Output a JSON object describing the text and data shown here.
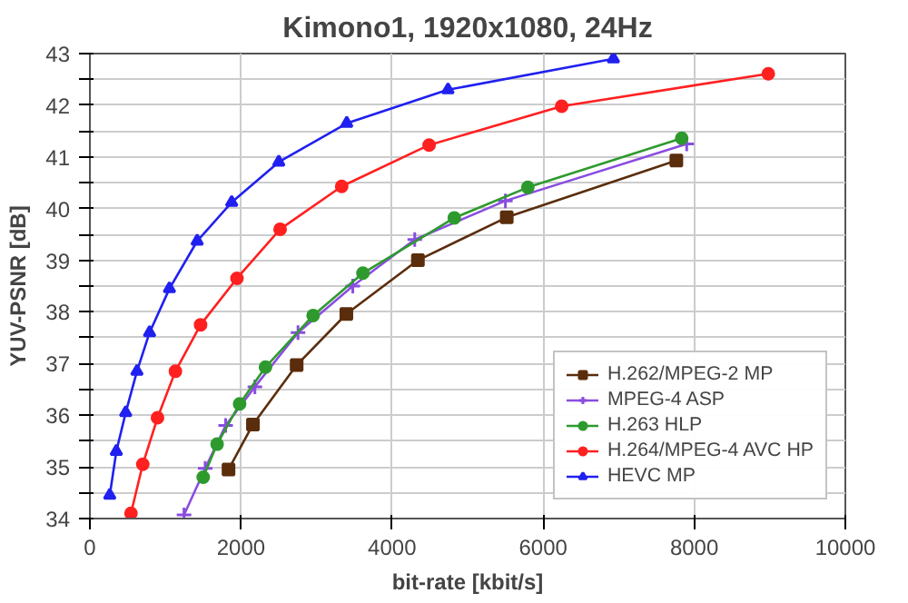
{
  "chart_data": {
    "type": "line",
    "title": "Kimono1, 1920x1080, 24Hz",
    "xlabel": "bit-rate [kbit/s]",
    "ylabel": "YUV-PSNR [dB]",
    "xlim": [
      0,
      10000
    ],
    "xticks": [
      0,
      2000,
      4000,
      6000,
      8000,
      10000
    ],
    "ylim": [
      34,
      43
    ],
    "yticks": [
      34,
      {
        "value": 34.5,
        "label": null
      },
      35,
      {
        "value": 35.5,
        "label": null
      },
      36,
      {
        "value": 36.5,
        "label": null
      },
      37,
      {
        "value": 37.5,
        "label": null
      },
      38,
      {
        "value": 38.5,
        "label": null
      },
      39,
      {
        "value": 39.5,
        "label": null
      },
      40,
      {
        "value": 40.5,
        "label": null
      },
      41,
      {
        "value": 41.5,
        "label": null
      },
      42,
      {
        "value": 42.5,
        "label": null
      },
      43
    ],
    "grid": true,
    "legend": "bottom right",
    "line_style": "solid",
    "series": [
      {
        "name": "H.262/MPEG-2 MP",
        "color": "#5a2d0c",
        "marker": "square",
        "x": [
          1835,
          2158,
          2737,
          3395,
          4342,
          5518,
          7763
        ],
        "values": [
          34.95,
          35.82,
          36.97,
          37.96,
          39.0,
          39.83,
          40.93
        ]
      },
      {
        "name": "MPEG-4 ASP",
        "color": "#8a4de0",
        "marker": "cross",
        "x": [
          1246,
          1526,
          1797,
          2184,
          2755,
          3480,
          4300,
          5500,
          7900
        ],
        "values": [
          34.07,
          34.97,
          35.8,
          36.55,
          37.6,
          38.5,
          39.4,
          40.15,
          41.25
        ]
      },
      {
        "name": "H.263 HLP",
        "color": "#2e9a2e",
        "marker": "circle",
        "x": [
          1500,
          1684,
          1982,
          2324,
          2955,
          3614,
          4824,
          5797,
          7834
        ],
        "values": [
          34.8,
          35.44,
          36.22,
          36.93,
          37.93,
          38.75,
          39.82,
          40.41,
          41.36
        ]
      },
      {
        "name": "H.264/MPEG-4 AVC HP",
        "color": "#ff2020",
        "marker": "circle",
        "x": [
          544,
          700,
          895,
          1132,
          1465,
          1947,
          2518,
          3333,
          4490,
          6245,
          8980
        ],
        "values": [
          34.1,
          35.05,
          35.95,
          36.85,
          37.75,
          38.65,
          39.6,
          40.43,
          41.23,
          41.98,
          42.61
        ]
      },
      {
        "name": "HEVC MP",
        "color": "#2020f0",
        "marker": "triangle",
        "x": [
          263,
          350,
          474,
          623,
          790,
          1053,
          1420,
          1877,
          2500,
          3400,
          4740,
          6930
        ],
        "values": [
          34.45,
          35.3,
          36.05,
          36.85,
          37.6,
          38.45,
          39.37,
          40.12,
          40.9,
          41.65,
          42.3,
          42.9
        ]
      }
    ]
  }
}
